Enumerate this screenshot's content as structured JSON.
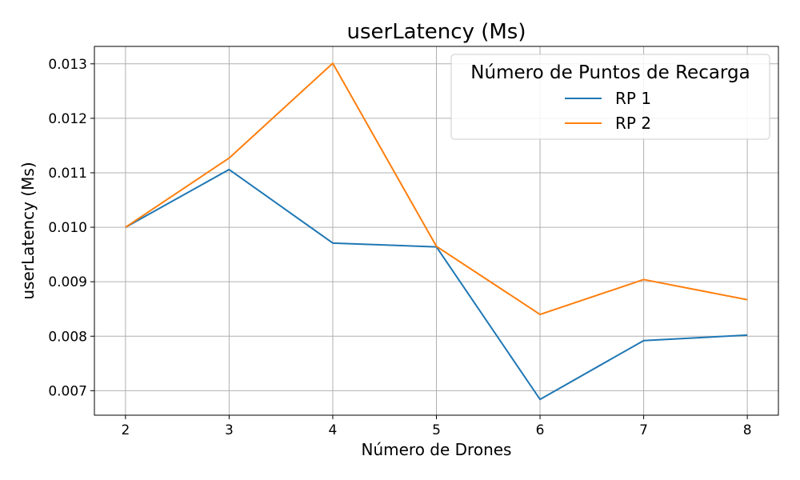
{
  "chart_data": {
    "type": "line",
    "title": "userLatency (Ms)",
    "xlabel": "Número de Drones",
    "ylabel": "userLatency (Ms)",
    "x": [
      2,
      3,
      4,
      5,
      6,
      7,
      8
    ],
    "x_tick_labels": [
      "2",
      "3",
      "4",
      "5",
      "6",
      "7",
      "8"
    ],
    "xlim": [
      1.7,
      8.3
    ],
    "ylim": [
      0.00655,
      0.01332
    ],
    "y_ticks": [
      0.007,
      0.008,
      0.009,
      0.01,
      0.011,
      0.012,
      0.013
    ],
    "y_tick_labels": [
      "0.007",
      "0.008",
      "0.009",
      "0.010",
      "0.011",
      "0.012",
      "0.013"
    ],
    "grid": true,
    "legend": {
      "title": "Número de Puntos de Recarga",
      "placement": "top-right"
    },
    "series": [
      {
        "name": "RP 1",
        "color": "#1f77b4",
        "values": [
          0.01,
          0.01106,
          0.00971,
          0.00964,
          0.00684,
          0.00792,
          0.00802
        ]
      },
      {
        "name": "RP 2",
        "color": "#ff7f0e",
        "values": [
          0.01,
          0.01127,
          0.01301,
          0.00965,
          0.0084,
          0.00904,
          0.00867
        ]
      }
    ]
  }
}
